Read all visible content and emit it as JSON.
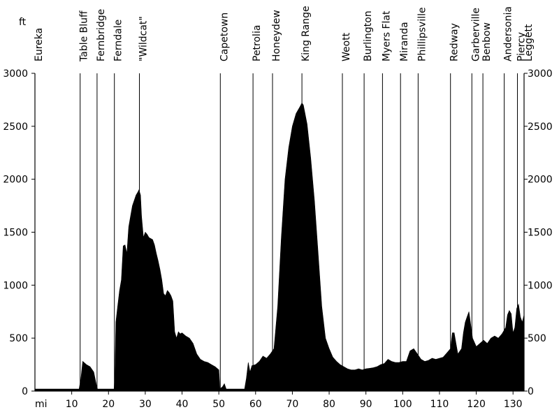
{
  "chart_data": {
    "type": "area",
    "y_unit_label": "ft",
    "x_unit_label": "mi",
    "xlim": [
      0,
      133
    ],
    "ylim": [
      0,
      3000
    ],
    "grid": false,
    "y_ticks": [
      0,
      500,
      1000,
      1500,
      2000,
      2500,
      3000
    ],
    "x_ticks": [
      10,
      20,
      30,
      40,
      50,
      60,
      70,
      80,
      90,
      100,
      110,
      120,
      130
    ],
    "colors": {
      "fill": "#000000",
      "axis": "#000000",
      "background": "#ffffff"
    },
    "places": [
      {
        "name": "Eureka",
        "mile": 0
      },
      {
        "name": "Table Bluff",
        "mile": 12.3
      },
      {
        "name": "Fernbridge",
        "mile": 16.9
      },
      {
        "name": "Ferndale",
        "mile": 21.6
      },
      {
        "name": "\"Wildcat\"",
        "mile": 28.4
      },
      {
        "name": "Capetown",
        "mile": 50.4
      },
      {
        "name": "Petrolia",
        "mile": 59.3
      },
      {
        "name": "Honeydew",
        "mile": 64.6
      },
      {
        "name": "King Range",
        "mile": 72.6
      },
      {
        "name": "Weott",
        "mile": 83.6
      },
      {
        "name": "Burlington",
        "mile": 89.5
      },
      {
        "name": "Myers Flat",
        "mile": 94.5
      },
      {
        "name": "Miranda",
        "mile": 99.4
      },
      {
        "name": "Phillipsville",
        "mile": 104.2
      },
      {
        "name": "Redway",
        "mile": 113.0
      },
      {
        "name": "Garberville",
        "mile": 118.8
      },
      {
        "name": "Benbow",
        "mile": 121.8
      },
      {
        "name": "Andersonia",
        "mile": 127.6
      },
      {
        "name": "Piercy",
        "mile": 131.2
      },
      {
        "name": "Leggett",
        "mile": 133.2
      }
    ],
    "x": [
      0,
      12,
      12.5,
      13,
      14,
      15,
      16,
      16.7,
      17,
      21.5,
      21.7,
      22,
      22.5,
      23,
      23.5,
      24,
      24.5,
      25,
      25.5,
      26,
      26.5,
      27,
      27.5,
      28,
      28.3,
      28.7,
      29,
      29.5,
      30,
      30.5,
      31,
      31.5,
      32,
      32.5,
      33,
      33.5,
      34,
      34.5,
      35,
      35.5,
      36,
      36.5,
      37,
      37.5,
      38,
      38.5,
      39,
      39.5,
      40,
      41,
      42,
      43,
      44,
      45,
      46,
      47,
      48,
      49,
      50,
      50.3,
      51,
      51.5,
      52,
      52.5,
      53,
      57,
      57.5,
      58,
      58.5,
      59,
      60,
      61,
      62,
      63,
      64,
      65,
      66,
      67,
      68,
      69,
      70,
      71,
      72,
      72.6,
      73,
      74,
      75,
      76,
      77,
      78,
      79,
      80,
      81,
      82,
      83,
      84,
      85,
      86,
      87,
      88,
      89,
      90,
      91,
      92,
      93,
      94,
      95,
      96,
      97,
      98,
      99,
      100,
      101,
      102,
      103,
      104,
      105,
      106,
      107,
      108,
      109,
      110,
      111,
      112,
      113,
      113.5,
      114,
      114.5,
      115,
      116,
      116.5,
      117,
      117.5,
      118,
      119,
      120,
      121,
      122,
      123,
      124,
      125,
      126,
      127,
      128,
      128.5,
      129,
      129.5,
      130,
      130.5,
      131,
      131.5,
      132,
      132.5,
      133
    ],
    "y": [
      20,
      20,
      120,
      280,
      250,
      230,
      180,
      60,
      20,
      20,
      120,
      650,
      800,
      950,
      1050,
      1370,
      1380,
      1300,
      1550,
      1650,
      1750,
      1800,
      1850,
      1880,
      1900,
      1850,
      1650,
      1450,
      1500,
      1480,
      1450,
      1440,
      1430,
      1380,
      1300,
      1230,
      1150,
      1050,
      920,
      900,
      950,
      930,
      900,
      850,
      560,
      500,
      560,
      540,
      550,
      520,
      500,
      450,
      350,
      300,
      280,
      270,
      250,
      230,
      200,
      20,
      40,
      70,
      20,
      20,
      20,
      20,
      120,
      270,
      180,
      240,
      250,
      280,
      330,
      310,
      350,
      400,
      800,
      1450,
      2000,
      2300,
      2500,
      2620,
      2680,
      2720,
      2700,
      2520,
      2200,
      1800,
      1300,
      800,
      500,
      400,
      320,
      280,
      250,
      230,
      210,
      200,
      200,
      210,
      200,
      210,
      215,
      220,
      230,
      250,
      260,
      300,
      280,
      270,
      270,
      280,
      280,
      380,
      400,
      350,
      300,
      280,
      290,
      310,
      300,
      310,
      320,
      360,
      400,
      550,
      550,
      450,
      350,
      400,
      550,
      650,
      700,
      750,
      500,
      420,
      450,
      480,
      450,
      500,
      520,
      500,
      540,
      600,
      720,
      760,
      730,
      550,
      600,
      780,
      820,
      700,
      650,
      720
    ]
  }
}
